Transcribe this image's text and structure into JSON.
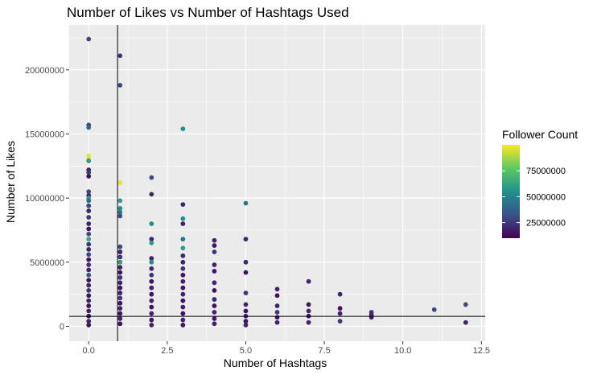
{
  "chart_data": {
    "type": "scatter",
    "title": "Number of Likes vs Number of Hashtags Used",
    "xlabel": "Number of Hashtags",
    "ylabel": "Number of Likes",
    "xlim": [
      -0.62,
      12.62
    ],
    "ylim": [
      -1160000,
      23500000
    ],
    "x_ticks": [
      0,
      2.5,
      5,
      7.5,
      10,
      12.5
    ],
    "x_tick_labels": [
      "0.0",
      "2.5",
      "5.0",
      "7.5",
      "10.0",
      "12.5"
    ],
    "y_ticks": [
      0,
      5000000,
      10000000,
      15000000,
      20000000
    ],
    "y_tick_labels": [
      "0",
      "5000000",
      "10000000",
      "15000000",
      "20000000"
    ],
    "grid": true,
    "reference_lines": {
      "vertical_x": 0.92,
      "horizontal_y": 780000
    },
    "color_scale": {
      "title": "Follower Count",
      "palette": "viridis",
      "range": [
        10000000,
        100000000
      ],
      "breaks": [
        25000000,
        50000000,
        75000000
      ],
      "break_labels": [
        "25000000",
        "50000000",
        "75000000"
      ]
    },
    "legend_position": "right",
    "points": [
      {
        "x": 0,
        "y": 22400000,
        "c": 30000000
      },
      {
        "x": 0,
        "y": 15700000,
        "c": 30000000
      },
      {
        "x": 0,
        "y": 15500000,
        "c": 40000000
      },
      {
        "x": 0,
        "y": 13300000,
        "c": 97000000
      },
      {
        "x": 0,
        "y": 13000000,
        "c": 93000000
      },
      {
        "x": 0,
        "y": 12900000,
        "c": 60000000
      },
      {
        "x": 0,
        "y": 12200000,
        "c": 20000000
      },
      {
        "x": 0,
        "y": 12000000,
        "c": 25000000
      },
      {
        "x": 0,
        "y": 11700000,
        "c": 15000000
      },
      {
        "x": 0,
        "y": 10500000,
        "c": 30000000
      },
      {
        "x": 0,
        "y": 10200000,
        "c": 20000000
      },
      {
        "x": 0,
        "y": 10000000,
        "c": 62000000
      },
      {
        "x": 0,
        "y": 9800000,
        "c": 40000000
      },
      {
        "x": 0,
        "y": 9400000,
        "c": 30000000
      },
      {
        "x": 0,
        "y": 9000000,
        "c": 20000000
      },
      {
        "x": 0,
        "y": 8500000,
        "c": 25000000
      },
      {
        "x": 0,
        "y": 8000000,
        "c": 20000000
      },
      {
        "x": 0,
        "y": 7600000,
        "c": 15000000
      },
      {
        "x": 0,
        "y": 7200000,
        "c": 30000000
      },
      {
        "x": 0,
        "y": 6800000,
        "c": 65000000
      },
      {
        "x": 0,
        "y": 6400000,
        "c": 25000000
      },
      {
        "x": 0,
        "y": 6000000,
        "c": 20000000
      },
      {
        "x": 0,
        "y": 5600000,
        "c": 30000000
      },
      {
        "x": 0,
        "y": 5200000,
        "c": 15000000
      },
      {
        "x": 0,
        "y": 4800000,
        "c": 25000000
      },
      {
        "x": 0,
        "y": 4400000,
        "c": 20000000
      },
      {
        "x": 0,
        "y": 4000000,
        "c": 35000000
      },
      {
        "x": 0,
        "y": 3600000,
        "c": 15000000
      },
      {
        "x": 0,
        "y": 3200000,
        "c": 20000000
      },
      {
        "x": 0,
        "y": 2800000,
        "c": 25000000
      },
      {
        "x": 0,
        "y": 2400000,
        "c": 15000000
      },
      {
        "x": 0,
        "y": 2000000,
        "c": 20000000
      },
      {
        "x": 0,
        "y": 1600000,
        "c": 15000000
      },
      {
        "x": 0,
        "y": 1200000,
        "c": 20000000
      },
      {
        "x": 0,
        "y": 800000,
        "c": 15000000
      },
      {
        "x": 0,
        "y": 400000,
        "c": 20000000
      },
      {
        "x": 0,
        "y": 100000,
        "c": 15000000
      },
      {
        "x": 1,
        "y": 21100000,
        "c": 25000000
      },
      {
        "x": 1,
        "y": 18800000,
        "c": 30000000
      },
      {
        "x": 1,
        "y": 11200000,
        "c": 97000000
      },
      {
        "x": 1,
        "y": 9800000,
        "c": 60000000
      },
      {
        "x": 1,
        "y": 9200000,
        "c": 55000000
      },
      {
        "x": 1,
        "y": 8900000,
        "c": 45000000
      },
      {
        "x": 1,
        "y": 8600000,
        "c": 30000000
      },
      {
        "x": 1,
        "y": 6200000,
        "c": 30000000
      },
      {
        "x": 1,
        "y": 5800000,
        "c": 20000000
      },
      {
        "x": 1,
        "y": 5400000,
        "c": 25000000
      },
      {
        "x": 1,
        "y": 5000000,
        "c": 60000000
      },
      {
        "x": 1,
        "y": 4600000,
        "c": 20000000
      },
      {
        "x": 1,
        "y": 4200000,
        "c": 15000000
      },
      {
        "x": 1,
        "y": 3800000,
        "c": 25000000
      },
      {
        "x": 1,
        "y": 3400000,
        "c": 20000000
      },
      {
        "x": 1,
        "y": 3000000,
        "c": 15000000
      },
      {
        "x": 1,
        "y": 2600000,
        "c": 20000000
      },
      {
        "x": 1,
        "y": 2200000,
        "c": 25000000
      },
      {
        "x": 1,
        "y": 1800000,
        "c": 15000000
      },
      {
        "x": 1,
        "y": 1400000,
        "c": 20000000
      },
      {
        "x": 1,
        "y": 1000000,
        "c": 15000000
      },
      {
        "x": 1,
        "y": 600000,
        "c": 20000000
      },
      {
        "x": 1,
        "y": 200000,
        "c": 15000000
      },
      {
        "x": 2,
        "y": 11600000,
        "c": 30000000
      },
      {
        "x": 2,
        "y": 10300000,
        "c": 20000000
      },
      {
        "x": 2,
        "y": 8000000,
        "c": 55000000
      },
      {
        "x": 2,
        "y": 6800000,
        "c": 20000000
      },
      {
        "x": 2,
        "y": 6500000,
        "c": 60000000
      },
      {
        "x": 2,
        "y": 5300000,
        "c": 20000000
      },
      {
        "x": 2,
        "y": 5000000,
        "c": 55000000
      },
      {
        "x": 2,
        "y": 4500000,
        "c": 20000000
      },
      {
        "x": 2,
        "y": 4000000,
        "c": 25000000
      },
      {
        "x": 2,
        "y": 3500000,
        "c": 15000000
      },
      {
        "x": 2,
        "y": 3000000,
        "c": 20000000
      },
      {
        "x": 2,
        "y": 2500000,
        "c": 15000000
      },
      {
        "x": 2,
        "y": 2000000,
        "c": 20000000
      },
      {
        "x": 2,
        "y": 1500000,
        "c": 15000000
      },
      {
        "x": 2,
        "y": 1000000,
        "c": 20000000
      },
      {
        "x": 2,
        "y": 500000,
        "c": 15000000
      },
      {
        "x": 2,
        "y": 100000,
        "c": 20000000
      },
      {
        "x": 3,
        "y": 15400000,
        "c": 55000000
      },
      {
        "x": 3,
        "y": 9500000,
        "c": 20000000
      },
      {
        "x": 3,
        "y": 8400000,
        "c": 55000000
      },
      {
        "x": 3,
        "y": 8000000,
        "c": 20000000
      },
      {
        "x": 3,
        "y": 6800000,
        "c": 45000000
      },
      {
        "x": 3,
        "y": 6100000,
        "c": 60000000
      },
      {
        "x": 3,
        "y": 5500000,
        "c": 20000000
      },
      {
        "x": 3,
        "y": 5000000,
        "c": 20000000
      },
      {
        "x": 3,
        "y": 4500000,
        "c": 25000000
      },
      {
        "x": 3,
        "y": 4000000,
        "c": 15000000
      },
      {
        "x": 3,
        "y": 3500000,
        "c": 20000000
      },
      {
        "x": 3,
        "y": 3000000,
        "c": 15000000
      },
      {
        "x": 3,
        "y": 2500000,
        "c": 20000000
      },
      {
        "x": 3,
        "y": 2000000,
        "c": 15000000
      },
      {
        "x": 3,
        "y": 1500000,
        "c": 20000000
      },
      {
        "x": 3,
        "y": 1000000,
        "c": 15000000
      },
      {
        "x": 3,
        "y": 500000,
        "c": 20000000
      },
      {
        "x": 3,
        "y": 100000,
        "c": 15000000
      },
      {
        "x": 4,
        "y": 6700000,
        "c": 20000000
      },
      {
        "x": 4,
        "y": 6300000,
        "c": 15000000
      },
      {
        "x": 4,
        "y": 5800000,
        "c": 25000000
      },
      {
        "x": 4,
        "y": 4800000,
        "c": 20000000
      },
      {
        "x": 4,
        "y": 4300000,
        "c": 15000000
      },
      {
        "x": 4,
        "y": 3400000,
        "c": 20000000
      },
      {
        "x": 4,
        "y": 2800000,
        "c": 15000000
      },
      {
        "x": 4,
        "y": 2100000,
        "c": 20000000
      },
      {
        "x": 4,
        "y": 1600000,
        "c": 15000000
      },
      {
        "x": 4,
        "y": 1100000,
        "c": 20000000
      },
      {
        "x": 4,
        "y": 600000,
        "c": 15000000
      },
      {
        "x": 4,
        "y": 200000,
        "c": 20000000
      },
      {
        "x": 5,
        "y": 9600000,
        "c": 45000000
      },
      {
        "x": 5,
        "y": 6800000,
        "c": 20000000
      },
      {
        "x": 5,
        "y": 5000000,
        "c": 20000000
      },
      {
        "x": 5,
        "y": 4200000,
        "c": 15000000
      },
      {
        "x": 5,
        "y": 2600000,
        "c": 25000000
      },
      {
        "x": 5,
        "y": 1700000,
        "c": 20000000
      },
      {
        "x": 5,
        "y": 1200000,
        "c": 15000000
      },
      {
        "x": 5,
        "y": 800000,
        "c": 20000000
      },
      {
        "x": 5,
        "y": 400000,
        "c": 15000000
      },
      {
        "x": 5,
        "y": 100000,
        "c": 20000000
      },
      {
        "x": 6,
        "y": 2900000,
        "c": 20000000
      },
      {
        "x": 6,
        "y": 2400000,
        "c": 15000000
      },
      {
        "x": 6,
        "y": 1600000,
        "c": 20000000
      },
      {
        "x": 6,
        "y": 1100000,
        "c": 25000000
      },
      {
        "x": 6,
        "y": 700000,
        "c": 15000000
      },
      {
        "x": 6,
        "y": 300000,
        "c": 20000000
      },
      {
        "x": 7,
        "y": 3500000,
        "c": 20000000
      },
      {
        "x": 7,
        "y": 1700000,
        "c": 15000000
      },
      {
        "x": 7,
        "y": 1200000,
        "c": 20000000
      },
      {
        "x": 7,
        "y": 800000,
        "c": 15000000
      },
      {
        "x": 7,
        "y": 300000,
        "c": 20000000
      },
      {
        "x": 8,
        "y": 2500000,
        "c": 20000000
      },
      {
        "x": 8,
        "y": 1400000,
        "c": 15000000
      },
      {
        "x": 8,
        "y": 1000000,
        "c": 20000000
      },
      {
        "x": 8,
        "y": 400000,
        "c": 25000000
      },
      {
        "x": 9,
        "y": 1100000,
        "c": 25000000
      },
      {
        "x": 9,
        "y": 900000,
        "c": 20000000
      },
      {
        "x": 9,
        "y": 700000,
        "c": 20000000
      },
      {
        "x": 11,
        "y": 1300000,
        "c": 30000000
      },
      {
        "x": 12,
        "y": 1700000,
        "c": 30000000
      },
      {
        "x": 12,
        "y": 300000,
        "c": 20000000
      }
    ]
  }
}
